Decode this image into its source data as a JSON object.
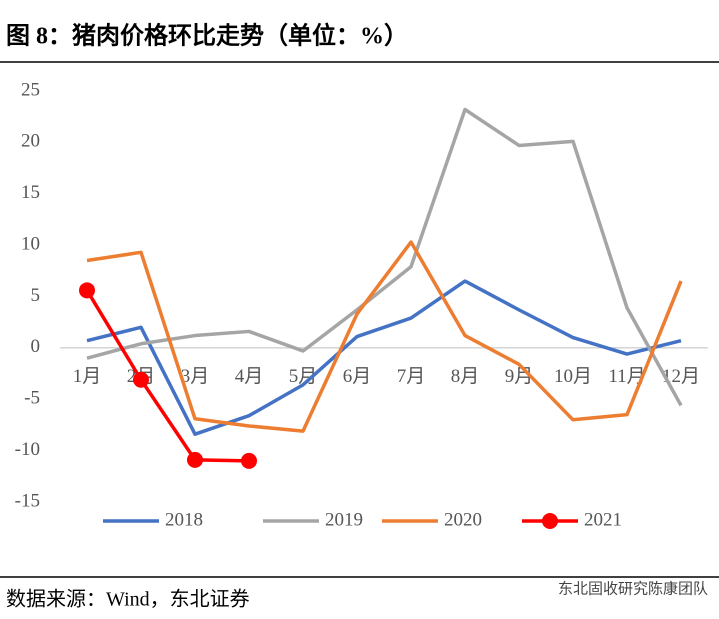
{
  "chart_data": {
    "type": "line",
    "title": "图 8：猪肉价格环比走势（单位：%）",
    "source": "数据来源：Wind，东北证券",
    "watermark": "东北固收研究陈康团队",
    "categories": [
      "1月",
      "2月",
      "3月",
      "4月",
      "5月",
      "6月",
      "7月",
      "8月",
      "9月",
      "10月",
      "11月",
      "12月"
    ],
    "series": [
      {
        "name": "2018",
        "color": "#4472c4",
        "values": [
          0.7,
          2.0,
          -8.4,
          -6.6,
          -3.6,
          1.1,
          2.9,
          6.5,
          3.7,
          1.0,
          -0.6,
          0.7
        ]
      },
      {
        "name": "2019",
        "color": "#a5a5a5",
        "values": [
          -1.0,
          0.4,
          1.2,
          1.6,
          -0.3,
          3.7,
          7.9,
          23.2,
          19.7,
          20.1,
          3.9,
          -5.6
        ]
      },
      {
        "name": "2020",
        "color": "#ed7d31",
        "values": [
          8.5,
          9.3,
          -6.9,
          -7.6,
          -8.1,
          3.3,
          10.3,
          1.2,
          -1.6,
          -7.0,
          -6.5,
          6.5
        ]
      },
      {
        "name": "2021",
        "color": "#ff0000",
        "markers": true,
        "values": [
          5.6,
          -3.1,
          -10.9,
          -11.0,
          null,
          null,
          null,
          null,
          null,
          null,
          null,
          null
        ]
      }
    ],
    "ylim": [
      -15,
      25
    ],
    "yticks": [
      -15,
      -10,
      -5,
      0,
      5,
      10,
      15,
      20,
      25
    ],
    "legend": "bottom"
  }
}
